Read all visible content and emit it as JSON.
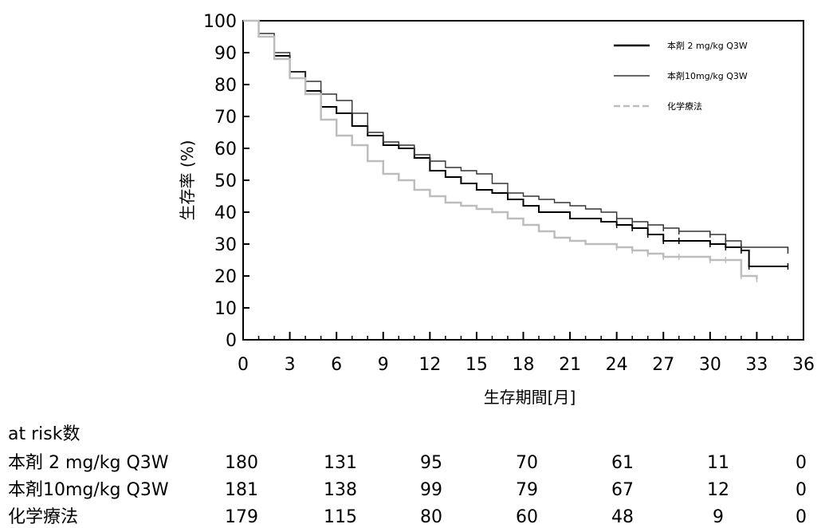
{
  "chart_data": {
    "type": "line",
    "subtype": "kaplan-meier",
    "xlabel": "生存期間[月]",
    "ylabel": "生存率 (%)",
    "xlim": [
      0,
      36
    ],
    "ylim": [
      0,
      100
    ],
    "xticks": [
      0,
      3,
      6,
      9,
      12,
      15,
      18,
      21,
      24,
      27,
      30,
      33,
      36
    ],
    "yticks": [
      0,
      10,
      20,
      30,
      40,
      50,
      60,
      70,
      80,
      90,
      100
    ],
    "grid": false,
    "legend_position": "top-right",
    "series": [
      {
        "name": "本剤 2 mg/kg Q3W",
        "color": "#000000",
        "line_style": "solid",
        "points": [
          [
            0,
            100
          ],
          [
            1,
            95
          ],
          [
            2,
            89
          ],
          [
            3,
            84
          ],
          [
            4,
            78
          ],
          [
            5,
            73
          ],
          [
            6,
            71
          ],
          [
            7,
            67
          ],
          [
            8,
            64
          ],
          [
            9,
            61
          ],
          [
            10,
            60
          ],
          [
            11,
            57
          ],
          [
            12,
            53
          ],
          [
            13,
            51
          ],
          [
            14,
            49
          ],
          [
            15,
            47
          ],
          [
            16,
            46
          ],
          [
            17,
            44
          ],
          [
            18,
            42
          ],
          [
            19,
            40
          ],
          [
            20,
            40
          ],
          [
            21,
            38
          ],
          [
            22,
            38
          ],
          [
            23,
            37
          ],
          [
            24,
            36
          ],
          [
            25,
            35
          ],
          [
            26,
            33
          ],
          [
            27,
            31
          ],
          [
            28,
            31
          ],
          [
            30,
            30
          ],
          [
            31,
            29
          ],
          [
            32,
            28
          ],
          [
            32.5,
            23
          ],
          [
            35,
            23
          ]
        ]
      },
      {
        "name": "本剤10mg/kg Q3W",
        "color": "#333333",
        "line_style": "solid",
        "points": [
          [
            0,
            100
          ],
          [
            1,
            96
          ],
          [
            2,
            90
          ],
          [
            3,
            84
          ],
          [
            4,
            81
          ],
          [
            5,
            77
          ],
          [
            6,
            75
          ],
          [
            7,
            71
          ],
          [
            8,
            65
          ],
          [
            9,
            62
          ],
          [
            10,
            61
          ],
          [
            11,
            58
          ],
          [
            12,
            56
          ],
          [
            13,
            54
          ],
          [
            14,
            53
          ],
          [
            15,
            52
          ],
          [
            16,
            49
          ],
          [
            17,
            46
          ],
          [
            18,
            45
          ],
          [
            19,
            44
          ],
          [
            20,
            43
          ],
          [
            21,
            42
          ],
          [
            22,
            41
          ],
          [
            23,
            40
          ],
          [
            24,
            38
          ],
          [
            25,
            37
          ],
          [
            26,
            36
          ],
          [
            27,
            35
          ],
          [
            28,
            34
          ],
          [
            30,
            33
          ],
          [
            31,
            31
          ],
          [
            32,
            29
          ],
          [
            35,
            28
          ]
        ]
      },
      {
        "name": "化学療法",
        "color": "#bdbdbd",
        "line_style": "dashed",
        "points": [
          [
            0,
            100
          ],
          [
            1,
            95
          ],
          [
            2,
            88
          ],
          [
            3,
            82
          ],
          [
            4,
            77
          ],
          [
            5,
            69
          ],
          [
            6,
            64
          ],
          [
            7,
            61
          ],
          [
            8,
            56
          ],
          [
            9,
            52
          ],
          [
            10,
            50
          ],
          [
            11,
            47
          ],
          [
            12,
            45
          ],
          [
            13,
            43
          ],
          [
            14,
            42
          ],
          [
            15,
            41
          ],
          [
            16,
            40
          ],
          [
            17,
            38
          ],
          [
            18,
            36
          ],
          [
            19,
            34
          ],
          [
            20,
            32
          ],
          [
            21,
            31
          ],
          [
            22,
            30
          ],
          [
            23,
            30
          ],
          [
            24,
            29
          ],
          [
            25,
            28
          ],
          [
            26,
            27
          ],
          [
            27,
            26
          ],
          [
            28,
            26
          ],
          [
            30,
            25
          ],
          [
            31,
            25
          ],
          [
            32,
            20
          ],
          [
            33,
            19
          ]
        ]
      }
    ]
  },
  "risk_table": {
    "title": "at risk数",
    "time_points": [
      0,
      6,
      12,
      18,
      24,
      30,
      36
    ],
    "rows": [
      {
        "name": "本剤 2 mg/kg Q3W",
        "values": [
          "180",
          "131",
          "95",
          "70",
          "61",
          "11",
          "0"
        ]
      },
      {
        "name": "本剤10mg/kg Q3W",
        "values": [
          "181",
          "138",
          "99",
          "79",
          "67",
          "12",
          "0"
        ]
      },
      {
        "name": "化学療法",
        "values": [
          "179",
          "115",
          "80",
          "60",
          "48",
          "9",
          "0"
        ]
      }
    ]
  }
}
